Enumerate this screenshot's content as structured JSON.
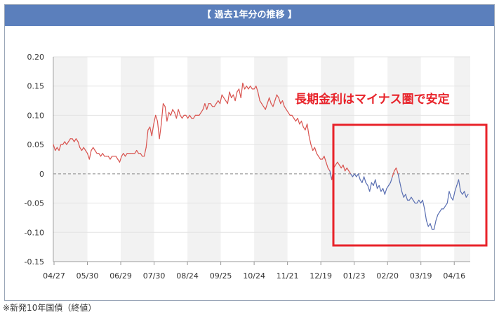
{
  "header": {
    "title": "【 過去1年分の推移 】"
  },
  "annotation": {
    "text": "長期金利はマイナス圏で安定"
  },
  "footnote": {
    "text": "※新発10年国債（終値）"
  },
  "colors": {
    "header_bg": "#5b7fbc",
    "positive_line": "#d9534f",
    "negative_line": "#5a6fb2",
    "annotation_red": "#e8232a",
    "band": "#f2f2f2"
  },
  "chart_data": {
    "type": "line",
    "title": "",
    "xlabel": "",
    "ylabel": "",
    "ylim": [
      -0.15,
      0.2
    ],
    "yticks": [
      0.2,
      0.15,
      0.1,
      0.05,
      0,
      -0.05,
      -0.1,
      -0.15
    ],
    "ytick_labels": [
      "0.20",
      "0.15",
      "0.10",
      "0.05",
      "0",
      "-0.05",
      "-0.10",
      "-0.15"
    ],
    "xtick_labels": [
      "04/27",
      "05/30",
      "06/29",
      "07/30",
      "08/24",
      "09/25",
      "10/24",
      "11/21",
      "12/19",
      "01/23",
      "02/20",
      "03/19",
      "04/16"
    ],
    "grid": true,
    "zero_line": "dashed",
    "series": [
      {
        "values": [
          0.05,
          0.04,
          0.045,
          0.04,
          0.05,
          0.05,
          0.055,
          0.05,
          0.055,
          0.06,
          0.06,
          0.055,
          0.06,
          0.055,
          0.045,
          0.04,
          0.045,
          0.04,
          0.035,
          0.025,
          0.04,
          0.045,
          0.04,
          0.035,
          0.035,
          0.03,
          0.035,
          0.03,
          0.03,
          0.03,
          0.025,
          0.03,
          0.03,
          0.03,
          0.025,
          0.02,
          0.03,
          0.035,
          0.03,
          0.035,
          0.035,
          0.035,
          0.035,
          0.035,
          0.04,
          0.035,
          0.035,
          0.03,
          0.03,
          0.045,
          0.075,
          0.08,
          0.065,
          0.085,
          0.1,
          0.09,
          0.06,
          0.085,
          0.12,
          0.115,
          0.09,
          0.105,
          0.1,
          0.11,
          0.105,
          0.095,
          0.11,
          0.1,
          0.095,
          0.1,
          0.1,
          0.095,
          0.1,
          0.095,
          0.095,
          0.1,
          0.1,
          0.1,
          0.105,
          0.11,
          0.12,
          0.11,
          0.12,
          0.12,
          0.115,
          0.115,
          0.12,
          0.125,
          0.12,
          0.135,
          0.13,
          0.125,
          0.12,
          0.14,
          0.13,
          0.135,
          0.125,
          0.14,
          0.145,
          0.13,
          0.155,
          0.145,
          0.15,
          0.145,
          0.15,
          0.145,
          0.145,
          0.15,
          0.14,
          0.125,
          0.12,
          0.115,
          0.11,
          0.12,
          0.13,
          0.12,
          0.115,
          0.125,
          0.135,
          0.13,
          0.12,
          0.125,
          0.115,
          0.11,
          0.105,
          0.1,
          0.1,
          0.095,
          0.09,
          0.095,
          0.085,
          0.09,
          0.08,
          0.075,
          0.085,
          0.065,
          0.05,
          0.04,
          0.045,
          0.035,
          0.03,
          0.025,
          0.025,
          0.03,
          0.02,
          0.01,
          0.005,
          -0.01,
          0.01,
          0.015,
          0.02,
          0.015,
          0.01,
          0.015,
          0.005,
          0.01,
          0.005,
          0.0,
          -0.005,
          0.0,
          -0.005,
          0.0,
          -0.01,
          -0.015,
          -0.005,
          -0.015,
          -0.02,
          -0.03,
          -0.015,
          -0.02,
          -0.01,
          -0.025,
          -0.02,
          -0.03,
          -0.025,
          -0.035,
          -0.025,
          -0.02,
          -0.015,
          -0.005,
          0.005,
          0.01,
          0.0,
          -0.015,
          -0.03,
          -0.04,
          -0.035,
          -0.045,
          -0.045,
          -0.04,
          -0.045,
          -0.05,
          -0.05,
          -0.045,
          -0.05,
          -0.045,
          -0.06,
          -0.08,
          -0.09,
          -0.085,
          -0.095,
          -0.095,
          -0.08,
          -0.07,
          -0.065,
          -0.06,
          -0.06,
          -0.055,
          -0.05,
          -0.03,
          -0.04,
          -0.045,
          -0.03,
          -0.02,
          -0.01,
          -0.03,
          -0.035,
          -0.03,
          -0.04,
          -0.035
        ]
      }
    ]
  }
}
